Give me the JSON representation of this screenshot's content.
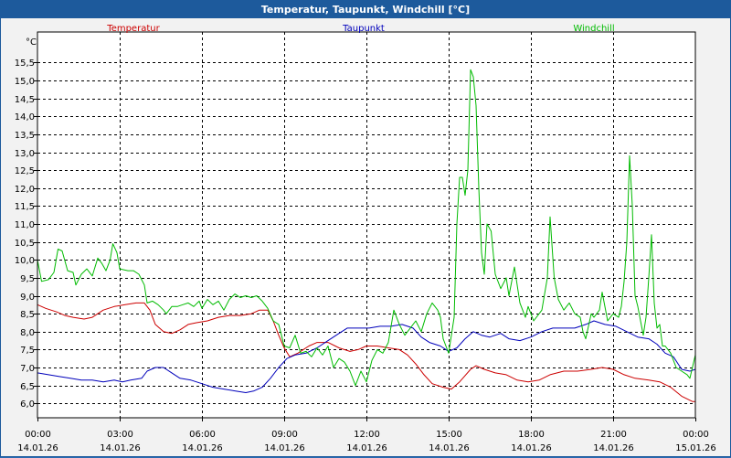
{
  "window": {
    "title": "Temperatur, Taupunkt, Windchill [°C]"
  },
  "chart_data": {
    "type": "line",
    "title": "Temperatur, Taupunkt, Windchill [°C]",
    "ylabel": "°C",
    "xlabel": "",
    "ylim": [
      5.6,
      16.35
    ],
    "xlim": [
      0,
      24
    ],
    "grid": true,
    "yticks": [
      "6,0",
      "6,5",
      "7,0",
      "7,5",
      "8,0",
      "8,5",
      "9,0",
      "9,5",
      "10,0",
      "10,5",
      "11,0",
      "11,5",
      "12,0",
      "12,5",
      "13,0",
      "13,5",
      "14,0",
      "14,5",
      "15,0",
      "15,5"
    ],
    "ytick_values": [
      6.0,
      6.5,
      7.0,
      7.5,
      8.0,
      8.5,
      9.0,
      9.5,
      10.0,
      10.5,
      11.0,
      11.5,
      12.0,
      12.5,
      13.0,
      13.5,
      14.0,
      14.5,
      15.0,
      15.5
    ],
    "xticks": [
      {
        "time": "00:00",
        "date": "14.01.26",
        "h": 0
      },
      {
        "time": "03:00",
        "date": "14.01.26",
        "h": 3
      },
      {
        "time": "06:00",
        "date": "14.01.26",
        "h": 6
      },
      {
        "time": "09:00",
        "date": "14.01.26",
        "h": 9
      },
      {
        "time": "12:00",
        "date": "14.01.26",
        "h": 12
      },
      {
        "time": "15:00",
        "date": "14.01.26",
        "h": 15
      },
      {
        "time": "18:00",
        "date": "14.01.26",
        "h": 18
      },
      {
        "time": "21:00",
        "date": "14.01.26",
        "h": 21
      },
      {
        "time": "00:00",
        "date": "15.01.26",
        "h": 24
      }
    ],
    "legend": [
      "Temperatur",
      "Taupunkt",
      "Windchill"
    ],
    "series": [
      {
        "name": "Temperatur",
        "color": "#cc0000",
        "points": [
          [
            0,
            8.75
          ],
          [
            0.3,
            8.65
          ],
          [
            0.7,
            8.55
          ],
          [
            1.0,
            8.45
          ],
          [
            1.3,
            8.4
          ],
          [
            1.7,
            8.35
          ],
          [
            2.0,
            8.4
          ],
          [
            2.4,
            8.6
          ],
          [
            2.8,
            8.7
          ],
          [
            3.2,
            8.75
          ],
          [
            3.6,
            8.8
          ],
          [
            3.9,
            8.8
          ],
          [
            4.1,
            8.6
          ],
          [
            4.3,
            8.2
          ],
          [
            4.6,
            8.0
          ],
          [
            4.9,
            7.95
          ],
          [
            5.2,
            8.05
          ],
          [
            5.5,
            8.2
          ],
          [
            5.8,
            8.25
          ],
          [
            6.2,
            8.3
          ],
          [
            6.6,
            8.4
          ],
          [
            7.0,
            8.45
          ],
          [
            7.4,
            8.45
          ],
          [
            7.8,
            8.5
          ],
          [
            8.1,
            8.6
          ],
          [
            8.4,
            8.6
          ],
          [
            8.6,
            8.3
          ],
          [
            8.8,
            7.9
          ],
          [
            9.0,
            7.55
          ],
          [
            9.2,
            7.3
          ],
          [
            9.5,
            7.4
          ],
          [
            9.9,
            7.6
          ],
          [
            10.2,
            7.7
          ],
          [
            10.6,
            7.7
          ],
          [
            11.0,
            7.55
          ],
          [
            11.4,
            7.45
          ],
          [
            11.7,
            7.5
          ],
          [
            12.0,
            7.6
          ],
          [
            12.4,
            7.6
          ],
          [
            12.8,
            7.55
          ],
          [
            13.2,
            7.5
          ],
          [
            13.5,
            7.35
          ],
          [
            13.8,
            7.1
          ],
          [
            14.1,
            6.8
          ],
          [
            14.4,
            6.55
          ],
          [
            14.8,
            6.45
          ],
          [
            15.1,
            6.4
          ],
          [
            15.4,
            6.6
          ],
          [
            15.8,
            6.95
          ],
          [
            16.0,
            7.05
          ],
          [
            16.3,
            6.95
          ],
          [
            16.7,
            6.85
          ],
          [
            17.1,
            6.8
          ],
          [
            17.5,
            6.65
          ],
          [
            17.9,
            6.6
          ],
          [
            18.3,
            6.65
          ],
          [
            18.7,
            6.8
          ],
          [
            19.2,
            6.9
          ],
          [
            19.7,
            6.9
          ],
          [
            20.2,
            6.95
          ],
          [
            20.6,
            7.0
          ],
          [
            21.0,
            6.95
          ],
          [
            21.4,
            6.8
          ],
          [
            21.8,
            6.7
          ],
          [
            22.3,
            6.65
          ],
          [
            22.7,
            6.6
          ],
          [
            23.1,
            6.45
          ],
          [
            23.5,
            6.2
          ],
          [
            23.9,
            6.05
          ],
          [
            24.0,
            6.05
          ]
        ]
      },
      {
        "name": "Taupunkt",
        "color": "#0000bb",
        "points": [
          [
            0,
            6.85
          ],
          [
            0.4,
            6.8
          ],
          [
            0.8,
            6.75
          ],
          [
            1.2,
            6.7
          ],
          [
            1.6,
            6.65
          ],
          [
            2.0,
            6.65
          ],
          [
            2.4,
            6.6
          ],
          [
            2.8,
            6.65
          ],
          [
            3.1,
            6.6
          ],
          [
            3.4,
            6.65
          ],
          [
            3.8,
            6.7
          ],
          [
            4.0,
            6.9
          ],
          [
            4.3,
            7.0
          ],
          [
            4.6,
            7.0
          ],
          [
            4.9,
            6.85
          ],
          [
            5.2,
            6.7
          ],
          [
            5.6,
            6.65
          ],
          [
            6.0,
            6.55
          ],
          [
            6.4,
            6.45
          ],
          [
            6.8,
            6.4
          ],
          [
            7.2,
            6.35
          ],
          [
            7.6,
            6.3
          ],
          [
            7.9,
            6.35
          ],
          [
            8.2,
            6.45
          ],
          [
            8.5,
            6.7
          ],
          [
            8.8,
            7.0
          ],
          [
            9.1,
            7.25
          ],
          [
            9.4,
            7.35
          ],
          [
            9.8,
            7.4
          ],
          [
            10.2,
            7.55
          ],
          [
            10.6,
            7.75
          ],
          [
            11.0,
            7.95
          ],
          [
            11.3,
            8.1
          ],
          [
            11.7,
            8.1
          ],
          [
            12.1,
            8.1
          ],
          [
            12.5,
            8.15
          ],
          [
            12.9,
            8.15
          ],
          [
            13.3,
            8.2
          ],
          [
            13.7,
            8.1
          ],
          [
            14.0,
            7.85
          ],
          [
            14.3,
            7.7
          ],
          [
            14.7,
            7.6
          ],
          [
            15.0,
            7.45
          ],
          [
            15.3,
            7.55
          ],
          [
            15.6,
            7.8
          ],
          [
            15.9,
            8.0
          ],
          [
            16.2,
            7.9
          ],
          [
            16.5,
            7.85
          ],
          [
            16.9,
            7.95
          ],
          [
            17.2,
            7.8
          ],
          [
            17.6,
            7.75
          ],
          [
            18.0,
            7.85
          ],
          [
            18.4,
            8.0
          ],
          [
            18.8,
            8.1
          ],
          [
            19.2,
            8.1
          ],
          [
            19.6,
            8.1
          ],
          [
            20.0,
            8.2
          ],
          [
            20.3,
            8.3
          ],
          [
            20.7,
            8.2
          ],
          [
            21.1,
            8.15
          ],
          [
            21.5,
            8.0
          ],
          [
            21.9,
            7.85
          ],
          [
            22.3,
            7.8
          ],
          [
            22.6,
            7.65
          ],
          [
            22.9,
            7.4
          ],
          [
            23.2,
            7.3
          ],
          [
            23.5,
            6.95
          ],
          [
            23.8,
            6.9
          ],
          [
            24.0,
            6.95
          ]
        ]
      },
      {
        "name": "Windchill",
        "color": "#00bb00",
        "points": [
          [
            0,
            10.0
          ],
          [
            0.15,
            9.4
          ],
          [
            0.4,
            9.45
          ],
          [
            0.6,
            9.65
          ],
          [
            0.75,
            10.3
          ],
          [
            0.9,
            10.25
          ],
          [
            1.1,
            9.7
          ],
          [
            1.3,
            9.65
          ],
          [
            1.4,
            9.3
          ],
          [
            1.6,
            9.6
          ],
          [
            1.8,
            9.75
          ],
          [
            2.0,
            9.55
          ],
          [
            2.2,
            10.05
          ],
          [
            2.35,
            9.9
          ],
          [
            2.5,
            9.7
          ],
          [
            2.65,
            10.0
          ],
          [
            2.75,
            10.45
          ],
          [
            2.9,
            10.2
          ],
          [
            3.0,
            9.75
          ],
          [
            3.3,
            9.7
          ],
          [
            3.5,
            9.7
          ],
          [
            3.7,
            9.6
          ],
          [
            3.9,
            9.3
          ],
          [
            4.0,
            8.8
          ],
          [
            4.2,
            8.85
          ],
          [
            4.4,
            8.75
          ],
          [
            4.6,
            8.6
          ],
          [
            4.7,
            8.5
          ],
          [
            4.9,
            8.7
          ],
          [
            5.1,
            8.7
          ],
          [
            5.3,
            8.75
          ],
          [
            5.5,
            8.8
          ],
          [
            5.7,
            8.7
          ],
          [
            5.9,
            8.85
          ],
          [
            6.0,
            8.65
          ],
          [
            6.2,
            8.9
          ],
          [
            6.4,
            8.75
          ],
          [
            6.6,
            8.85
          ],
          [
            6.8,
            8.6
          ],
          [
            7.0,
            8.9
          ],
          [
            7.2,
            9.05
          ],
          [
            7.4,
            8.95
          ],
          [
            7.6,
            9.0
          ],
          [
            7.8,
            8.95
          ],
          [
            8.0,
            9.0
          ],
          [
            8.2,
            8.85
          ],
          [
            8.4,
            8.65
          ],
          [
            8.6,
            8.3
          ],
          [
            8.8,
            8.2
          ],
          [
            9.0,
            7.6
          ],
          [
            9.2,
            7.55
          ],
          [
            9.4,
            7.9
          ],
          [
            9.6,
            7.4
          ],
          [
            9.8,
            7.45
          ],
          [
            10.0,
            7.3
          ],
          [
            10.2,
            7.55
          ],
          [
            10.4,
            7.35
          ],
          [
            10.6,
            7.6
          ],
          [
            10.8,
            7.0
          ],
          [
            11.0,
            7.25
          ],
          [
            11.2,
            7.15
          ],
          [
            11.4,
            6.9
          ],
          [
            11.6,
            6.5
          ],
          [
            11.8,
            6.9
          ],
          [
            12.0,
            6.6
          ],
          [
            12.2,
            7.2
          ],
          [
            12.4,
            7.5
          ],
          [
            12.6,
            7.4
          ],
          [
            12.8,
            7.7
          ],
          [
            13.0,
            8.6
          ],
          [
            13.2,
            8.2
          ],
          [
            13.4,
            7.9
          ],
          [
            13.6,
            8.1
          ],
          [
            13.8,
            8.3
          ],
          [
            14.0,
            8.0
          ],
          [
            14.2,
            8.5
          ],
          [
            14.4,
            8.8
          ],
          [
            14.6,
            8.6
          ],
          [
            14.7,
            8.4
          ],
          [
            14.8,
            7.8
          ],
          [
            14.9,
            7.6
          ],
          [
            15.0,
            7.4
          ],
          [
            15.1,
            7.9
          ],
          [
            15.2,
            8.4
          ],
          [
            15.3,
            11.0
          ],
          [
            15.4,
            12.3
          ],
          [
            15.5,
            12.3
          ],
          [
            15.6,
            11.8
          ],
          [
            15.7,
            12.5
          ],
          [
            15.8,
            15.3
          ],
          [
            15.9,
            15.1
          ],
          [
            16.0,
            14.3
          ],
          [
            16.1,
            12.0
          ],
          [
            16.2,
            10.2
          ],
          [
            16.3,
            9.6
          ],
          [
            16.4,
            11.0
          ],
          [
            16.55,
            10.8
          ],
          [
            16.7,
            9.6
          ],
          [
            16.9,
            9.2
          ],
          [
            17.1,
            9.5
          ],
          [
            17.2,
            9.0
          ],
          [
            17.4,
            9.8
          ],
          [
            17.5,
            9.3
          ],
          [
            17.6,
            8.8
          ],
          [
            17.8,
            8.4
          ],
          [
            17.9,
            8.7
          ],
          [
            18.1,
            8.3
          ],
          [
            18.3,
            8.5
          ],
          [
            18.4,
            8.6
          ],
          [
            18.6,
            9.5
          ],
          [
            18.7,
            11.2
          ],
          [
            18.85,
            9.5
          ],
          [
            19.0,
            8.9
          ],
          [
            19.2,
            8.6
          ],
          [
            19.4,
            8.8
          ],
          [
            19.6,
            8.5
          ],
          [
            19.8,
            8.4
          ],
          [
            19.9,
            8.0
          ],
          [
            20.0,
            7.8
          ],
          [
            20.2,
            8.5
          ],
          [
            20.3,
            8.4
          ],
          [
            20.5,
            8.6
          ],
          [
            20.6,
            9.1
          ],
          [
            20.8,
            8.3
          ],
          [
            21.0,
            8.5
          ],
          [
            21.2,
            8.4
          ],
          [
            21.3,
            8.7
          ],
          [
            21.4,
            9.4
          ],
          [
            21.5,
            10.5
          ],
          [
            21.6,
            12.9
          ],
          [
            21.7,
            11.5
          ],
          [
            21.8,
            9.0
          ],
          [
            21.9,
            8.7
          ],
          [
            22.0,
            8.3
          ],
          [
            22.1,
            7.9
          ],
          [
            22.2,
            8.4
          ],
          [
            22.3,
            9.5
          ],
          [
            22.4,
            10.7
          ],
          [
            22.5,
            8.8
          ],
          [
            22.6,
            8.1
          ],
          [
            22.7,
            8.2
          ],
          [
            22.8,
            7.6
          ],
          [
            22.9,
            7.6
          ],
          [
            23.1,
            7.4
          ],
          [
            23.3,
            7.0
          ],
          [
            23.5,
            6.9
          ],
          [
            23.7,
            6.8
          ],
          [
            23.8,
            6.7
          ],
          [
            24.0,
            7.35
          ]
        ]
      }
    ]
  }
}
